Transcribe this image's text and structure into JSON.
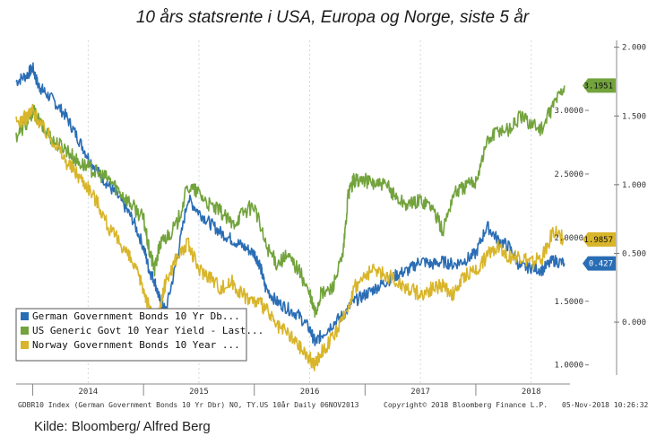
{
  "title": "10 års statsrente i USA, Europa og Norge, siste 5 år",
  "source": "Kilde: Bloomberg/ Alfred Berg",
  "footer": {
    "left": "GDBR10 Index (German Government Bonds 10 Yr Dbr) NO, TY.US 10år  Daily 06NOV2013",
    "middle": "Copyright© 2018 Bloomberg Finance L.P.",
    "right": "05-Nov-2018 10:26:32"
  },
  "chart_data": {
    "type": "line",
    "x_labels": [
      "2014",
      "2015",
      "2016",
      "2017",
      "2018"
    ],
    "x_range": [
      2013.85,
      2018.85
    ],
    "left_axis": {
      "ticks": [
        "3.0000",
        "2.5000",
        "2.0000",
        "1.5000",
        "1.0000"
      ],
      "range": [
        0.85,
        3.55
      ]
    },
    "right_axis": {
      "ticks": [
        "2.000",
        "1.500",
        "1.000",
        "0.500",
        "0.000"
      ],
      "range": [
        -0.45,
        2.05
      ]
    },
    "legend": [
      "German Government Bonds 10 Yr Db...",
      "US Generic Govt 10 Year Yield - Last...",
      "Norway Government Bonds 10 Year ..."
    ],
    "series": [
      {
        "name": "German Government Bonds 10 Yr Db...",
        "axis": "right",
        "color": "#2a6db5",
        "last_label": "0.427",
        "x": [
          2013.85,
          2013.95,
          2014.0,
          2014.05,
          2014.1,
          2014.2,
          2014.3,
          2014.4,
          2014.5,
          2014.6,
          2014.7,
          2014.8,
          2014.9,
          2015.0,
          2015.05,
          2015.1,
          2015.15,
          2015.2,
          2015.3,
          2015.4,
          2015.5,
          2015.6,
          2015.7,
          2015.8,
          2015.9,
          2016.0,
          2016.05,
          2016.1,
          2016.2,
          2016.3,
          2016.4,
          2016.5,
          2016.55,
          2016.6,
          2016.7,
          2016.8,
          2016.9,
          2017.0,
          2017.1,
          2017.2,
          2017.3,
          2017.4,
          2017.5,
          2017.6,
          2017.7,
          2017.8,
          2017.9,
          2018.0,
          2018.1,
          2018.2,
          2018.3,
          2018.4,
          2018.5,
          2018.6,
          2018.7,
          2018.8
        ],
        "y": [
          1.75,
          1.8,
          1.85,
          1.72,
          1.68,
          1.6,
          1.5,
          1.35,
          1.2,
          1.08,
          0.98,
          0.88,
          0.75,
          0.55,
          0.38,
          0.3,
          0.15,
          0.08,
          0.45,
          0.9,
          0.8,
          0.72,
          0.65,
          0.6,
          0.55,
          0.5,
          0.42,
          0.25,
          0.15,
          0.1,
          0.05,
          -0.05,
          -0.15,
          -0.1,
          -0.02,
          0.05,
          0.15,
          0.2,
          0.25,
          0.3,
          0.35,
          0.38,
          0.45,
          0.42,
          0.44,
          0.42,
          0.45,
          0.5,
          0.7,
          0.6,
          0.55,
          0.4,
          0.4,
          0.38,
          0.45,
          0.427
        ]
      },
      {
        "name": "US Generic Govt 10 Year Yield - Last...",
        "axis": "left",
        "color": "#72a33c",
        "last_label": "3.1951",
        "x": [
          2013.85,
          2013.95,
          2014.0,
          2014.1,
          2014.2,
          2014.3,
          2014.4,
          2014.5,
          2014.6,
          2014.7,
          2014.8,
          2014.9,
          2015.0,
          2015.05,
          2015.1,
          2015.15,
          2015.2,
          2015.3,
          2015.4,
          2015.5,
          2015.6,
          2015.7,
          2015.8,
          2015.9,
          2016.0,
          2016.1,
          2016.2,
          2016.3,
          2016.4,
          2016.5,
          2016.55,
          2016.6,
          2016.7,
          2016.8,
          2016.85,
          2016.9,
          2017.0,
          2017.1,
          2017.2,
          2017.3,
          2017.4,
          2017.5,
          2017.6,
          2017.7,
          2017.8,
          2017.9,
          2018.0,
          2018.1,
          2018.2,
          2018.3,
          2018.4,
          2018.5,
          2018.6,
          2018.7,
          2018.8
        ],
        "y": [
          2.8,
          2.9,
          3.0,
          2.85,
          2.75,
          2.7,
          2.6,
          2.55,
          2.5,
          2.45,
          2.35,
          2.25,
          2.15,
          1.9,
          1.75,
          1.95,
          2.0,
          2.1,
          2.4,
          2.35,
          2.25,
          2.2,
          2.1,
          2.2,
          2.25,
          1.95,
          1.8,
          1.85,
          1.75,
          1.55,
          1.4,
          1.55,
          1.6,
          1.85,
          2.35,
          2.45,
          2.45,
          2.42,
          2.4,
          2.3,
          2.25,
          2.3,
          2.25,
          2.05,
          2.35,
          2.4,
          2.45,
          2.75,
          2.85,
          2.85,
          2.95,
          2.9,
          2.85,
          3.05,
          3.1951
        ]
      },
      {
        "name": "Norway Government Bonds 10 Year ...",
        "axis": "left",
        "color": "#d8b52a",
        "last_label": "1.9857",
        "x": [
          2013.85,
          2013.95,
          2014.0,
          2014.1,
          2014.2,
          2014.3,
          2014.4,
          2014.5,
          2014.6,
          2014.7,
          2014.8,
          2014.9,
          2015.0,
          2015.05,
          2015.1,
          2015.15,
          2015.2,
          2015.3,
          2015.4,
          2015.5,
          2015.6,
          2015.7,
          2015.8,
          2015.9,
          2016.0,
          2016.1,
          2016.2,
          2016.3,
          2016.4,
          2016.5,
          2016.55,
          2016.6,
          2016.7,
          2016.8,
          2016.9,
          2017.0,
          2017.1,
          2017.2,
          2017.3,
          2017.4,
          2017.5,
          2017.6,
          2017.7,
          2017.8,
          2017.9,
          2018.0,
          2018.1,
          2018.2,
          2018.3,
          2018.4,
          2018.5,
          2018.6,
          2018.7,
          2018.8
        ],
        "y": [
          2.9,
          2.95,
          3.0,
          2.85,
          2.75,
          2.6,
          2.5,
          2.4,
          2.25,
          2.05,
          1.95,
          1.8,
          1.6,
          1.45,
          1.3,
          1.45,
          1.65,
          1.85,
          1.95,
          1.75,
          1.7,
          1.6,
          1.65,
          1.55,
          1.5,
          1.45,
          1.3,
          1.25,
          1.15,
          1.05,
          1.0,
          1.1,
          1.2,
          1.35,
          1.6,
          1.7,
          1.75,
          1.7,
          1.65,
          1.6,
          1.55,
          1.6,
          1.62,
          1.55,
          1.7,
          1.75,
          1.85,
          1.95,
          1.85,
          1.85,
          1.8,
          1.85,
          2.05,
          1.9857
        ]
      }
    ]
  }
}
